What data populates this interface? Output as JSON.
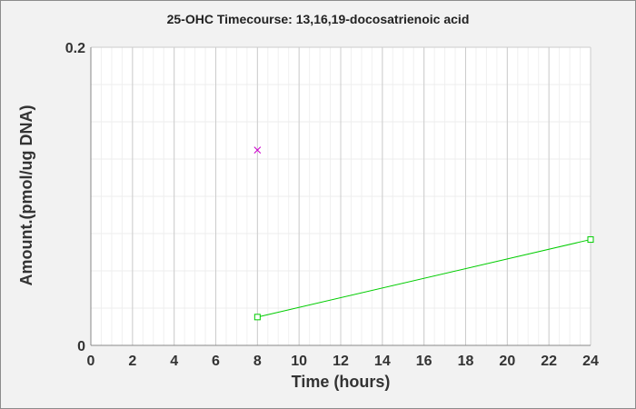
{
  "chart_data": {
    "type": "line",
    "title": "25-OHC Timecourse: 13,16,19-docosatrienoic acid",
    "xlabel": "Time (hours)",
    "ylabel": "Amount.(pmol/ug DNA)",
    "xlim": [
      0,
      24
    ],
    "ylim": [
      0,
      0.2
    ],
    "x_ticks": [
      0,
      2,
      4,
      6,
      8,
      10,
      12,
      14,
      16,
      18,
      20,
      22,
      24
    ],
    "y_ticks": [
      0,
      0.2
    ],
    "x_tick_labels": [
      "0",
      "2",
      "4",
      "6",
      "8",
      "10",
      "12",
      "14",
      "16",
      "18",
      "20",
      "22",
      "24"
    ],
    "y_tick_labels": [
      "0",
      "0.2"
    ],
    "grid": true,
    "series": [
      {
        "color": "#00cc00",
        "marker": "square",
        "line": true,
        "x": [
          8,
          24
        ],
        "y": [
          0.019,
          0.071
        ]
      },
      {
        "color": "#cc00cc",
        "marker": "x",
        "line": false,
        "x": [
          8
        ],
        "y": [
          0.131
        ]
      }
    ]
  }
}
